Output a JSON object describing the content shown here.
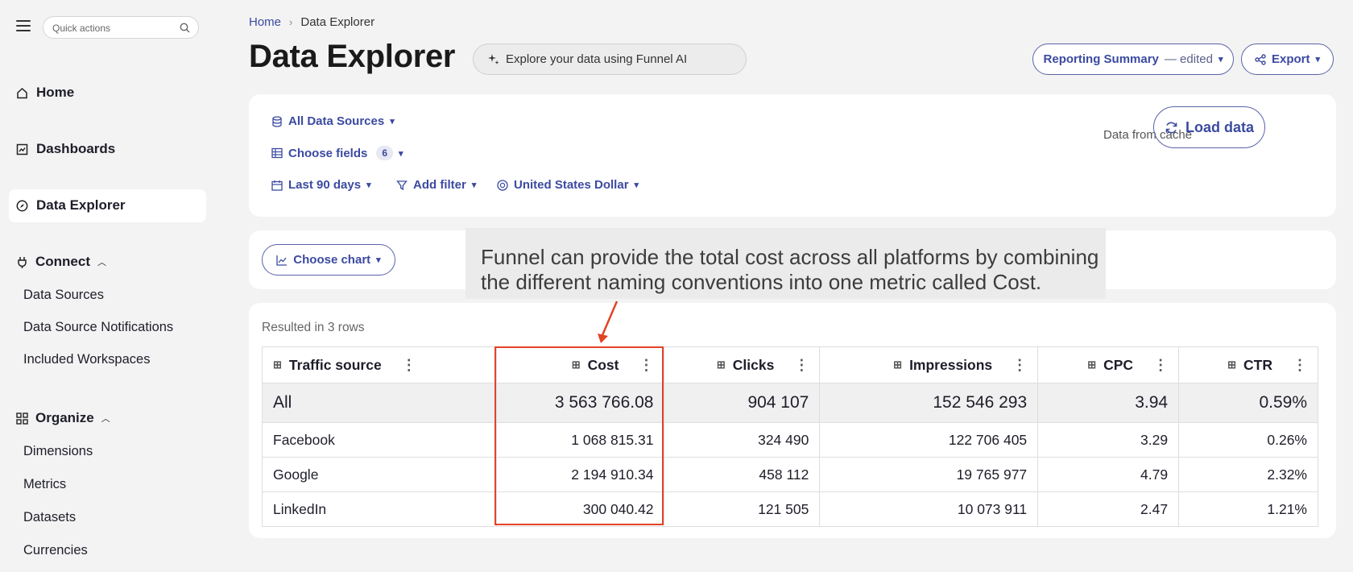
{
  "sidebar": {
    "quick_actions_placeholder": "Quick actions",
    "nav": [
      {
        "label": "Home",
        "icon": "home-icon"
      },
      {
        "label": "Dashboards",
        "icon": "dashboard-icon"
      },
      {
        "label": "Data Explorer",
        "icon": "compass-icon",
        "active": true
      }
    ],
    "connect": {
      "label": "Connect",
      "items": [
        "Data Sources",
        "Data Source Notifications",
        "Included Workspaces"
      ]
    },
    "organize": {
      "label": "Organize",
      "items": [
        "Dimensions",
        "Metrics",
        "Datasets",
        "Currencies"
      ]
    }
  },
  "header": {
    "breadcrumb_home": "Home",
    "breadcrumb_current": "Data Explorer",
    "title": "Data Explorer",
    "ai_placeholder": "Explore your data using Funnel AI",
    "view_name": "Reporting Summary",
    "view_status": "— edited",
    "export_label": "Export"
  },
  "controls": {
    "data_sources": "All Data Sources",
    "choose_fields": "Choose fields",
    "fields_count": "6",
    "date_range": "Last 90 days",
    "add_filter": "Add filter",
    "currency": "United States Dollar",
    "cache_status": "Data from cache",
    "load_label": "Load data"
  },
  "chart_bar": {
    "choose_chart": "Choose chart"
  },
  "annotation": {
    "text": "Funnel can provide the total cost across all platforms by combining the different naming conventions into one metric called Cost.",
    "highlight_color": "#e34326"
  },
  "results": {
    "summary": "Resulted in 3 rows",
    "columns": [
      "Traffic source",
      "Cost",
      "Clicks",
      "Impressions",
      "CPC",
      "CTR"
    ],
    "rows": [
      [
        "All",
        "3 563 766.08",
        "904 107",
        "152 546 293",
        "3.94",
        "0.59%"
      ],
      [
        "Facebook",
        "1 068 815.31",
        "324 490",
        "122 706 405",
        "3.29",
        "0.26%"
      ],
      [
        "Google",
        "2 194 910.34",
        "458 112",
        "19 765 977",
        "4.79",
        "2.32%"
      ],
      [
        "LinkedIn",
        "300 040.42",
        "121 505",
        "10 073 911",
        "2.47",
        "1.21%"
      ]
    ]
  },
  "colors": {
    "accent": "#3b4aa0",
    "background": "#f3f3f3"
  }
}
